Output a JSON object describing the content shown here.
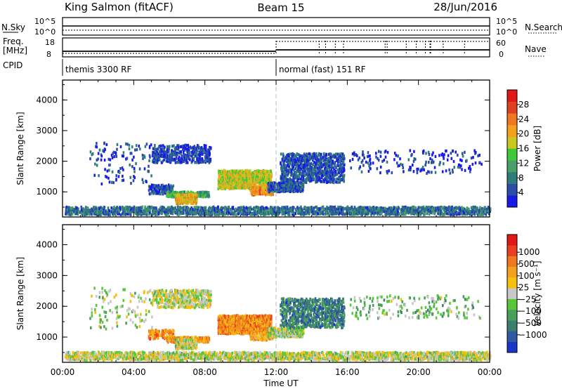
{
  "header": {
    "station": "King Salmon (fitACF)",
    "beam": "Beam 15",
    "date": "28/Jun/2016"
  },
  "top_panels": {
    "nsky_label": "N.Sky",
    "nsky_ticks": [
      "10^5",
      "10^0"
    ],
    "nsearch_label": "N.Search",
    "nsearch_ticks": [
      "10^5",
      "10^0"
    ],
    "freq_label_1": "Freq.",
    "freq_label_2": "[MHz]",
    "freq_ticks": [
      "18",
      "8"
    ],
    "nave_label": "Nave",
    "nave_ticks": [
      "60",
      "0"
    ],
    "cpid_label": "CPID",
    "cpid_segments": [
      {
        "start_hour": 0,
        "end_hour": 12,
        "label": "themis 3300 RF"
      },
      {
        "start_hour": 12,
        "end_hour": 24,
        "label": "normal (fast) 151 RF"
      }
    ]
  },
  "chart_data": [
    {
      "type": "heatmap",
      "panel": "power",
      "xlabel": "Time UT",
      "x_ticks": [
        "00:00",
        "04:00",
        "08:00",
        "12:00",
        "16:00",
        "20:00",
        "00:00"
      ],
      "xlim_hours": [
        0,
        24
      ],
      "ylabel": "Slant Range [km]",
      "ylim_km": [
        180,
        4650
      ],
      "y_ticks": [
        "1000",
        "2000",
        "3000",
        "4000"
      ],
      "colorbar": {
        "label": "Power [dB]",
        "range": [
          0,
          32
        ],
        "tick_values": [
          "4",
          "8",
          "12",
          "16",
          "20",
          "24",
          "28"
        ],
        "colors": [
          "#1a1ae6",
          "#2a4ea8",
          "#2f7d7a",
          "#4a9e68",
          "#3fc83a",
          "#c8c820",
          "#f2a21c",
          "#f07820",
          "#e04020",
          "#e21818"
        ]
      },
      "regions": [
        {
          "t": [
            0.1,
            24.0
          ],
          "r": [
            200,
            460
          ],
          "level": 0.22,
          "density": 0.5
        },
        {
          "t": [
            5.0,
            8.3
          ],
          "r": [
            1900,
            2480
          ],
          "level": 0.12,
          "density": 0.35
        },
        {
          "t": [
            4.8,
            6.2
          ],
          "r": [
            880,
            1180
          ],
          "level": 0.15,
          "density": 0.4
        },
        {
          "t": [
            5.8,
            8.2
          ],
          "r": [
            780,
            950
          ],
          "level": 0.38,
          "density": 0.65
        },
        {
          "t": [
            6.3,
            7.5
          ],
          "r": [
            560,
            880
          ],
          "level": 0.62,
          "density": 0.8
        },
        {
          "t": [
            8.7,
            11.7
          ],
          "r": [
            1050,
            1650
          ],
          "level": 0.55,
          "density": 0.72
        },
        {
          "t": [
            10.5,
            11.8
          ],
          "r": [
            850,
            1100
          ],
          "level": 0.68,
          "density": 0.6
        },
        {
          "t": [
            11.5,
            13.5
          ],
          "r": [
            950,
            1250
          ],
          "level": 0.18,
          "density": 0.6
        },
        {
          "t": [
            12.2,
            15.8
          ],
          "r": [
            1250,
            2200
          ],
          "level": 0.15,
          "density": 0.35
        },
        {
          "t": [
            16.0,
            23.5
          ],
          "r": [
            1550,
            2300
          ],
          "level": 0.1,
          "density": 0.06
        },
        {
          "t": [
            1.5,
            5.0
          ],
          "r": [
            1200,
            2550
          ],
          "level": 0.12,
          "density": 0.04
        }
      ]
    },
    {
      "type": "heatmap",
      "panel": "velocity",
      "xlabel": "Time UT",
      "x_ticks": [
        "00:00",
        "04:00",
        "08:00",
        "12:00",
        "16:00",
        "20:00",
        "00:00"
      ],
      "xlim_hours": [
        0,
        24
      ],
      "ylabel": "Slant Range [km]",
      "ylim_km": [
        180,
        4650
      ],
      "y_ticks": [
        "1000",
        "2000",
        "3000",
        "4000"
      ],
      "colorbar": {
        "label": "Velocity [m s⁻¹]",
        "tick_values": [
          "1000",
          "500",
          "100",
          "25",
          "−25",
          "−100",
          "−500",
          "−1000"
        ],
        "colors": [
          "#1a35c8",
          "#2f5aa0",
          "#3d7d6e",
          "#4aa05a",
          "#58c83a",
          "#c8c8c8",
          "#f5c010",
          "#f2a21c",
          "#f07820",
          "#e84020",
          "#e21818"
        ]
      },
      "regions": [
        {
          "t": [
            0.1,
            24.0
          ],
          "r": [
            200,
            460
          ],
          "level": 0.5,
          "density": 0.5
        },
        {
          "t": [
            5.0,
            8.3
          ],
          "r": [
            1900,
            2480
          ],
          "level": 0.5,
          "density": 0.35
        },
        {
          "t": [
            4.8,
            6.2
          ],
          "r": [
            880,
            1180
          ],
          "level": 0.72,
          "density": 0.4
        },
        {
          "t": [
            5.8,
            8.2
          ],
          "r": [
            780,
            950
          ],
          "level": 0.7,
          "density": 0.65
        },
        {
          "t": [
            6.3,
            7.5
          ],
          "r": [
            560,
            880
          ],
          "level": 0.5,
          "density": 0.8
        },
        {
          "t": [
            8.7,
            11.7
          ],
          "r": [
            1050,
            1650
          ],
          "level": 0.72,
          "density": 0.72
        },
        {
          "t": [
            10.5,
            11.8
          ],
          "r": [
            850,
            1100
          ],
          "level": 0.66,
          "density": 0.6
        },
        {
          "t": [
            11.5,
            13.5
          ],
          "r": [
            950,
            1250
          ],
          "level": 0.45,
          "density": 0.6
        },
        {
          "t": [
            12.2,
            15.8
          ],
          "r": [
            1250,
            2200
          ],
          "level": 0.22,
          "density": 0.35
        },
        {
          "t": [
            16.0,
            23.5
          ],
          "r": [
            1550,
            2300
          ],
          "level": 0.4,
          "density": 0.06
        },
        {
          "t": [
            1.5,
            5.0
          ],
          "r": [
            1200,
            2550
          ],
          "level": 0.45,
          "density": 0.04
        }
      ]
    }
  ]
}
